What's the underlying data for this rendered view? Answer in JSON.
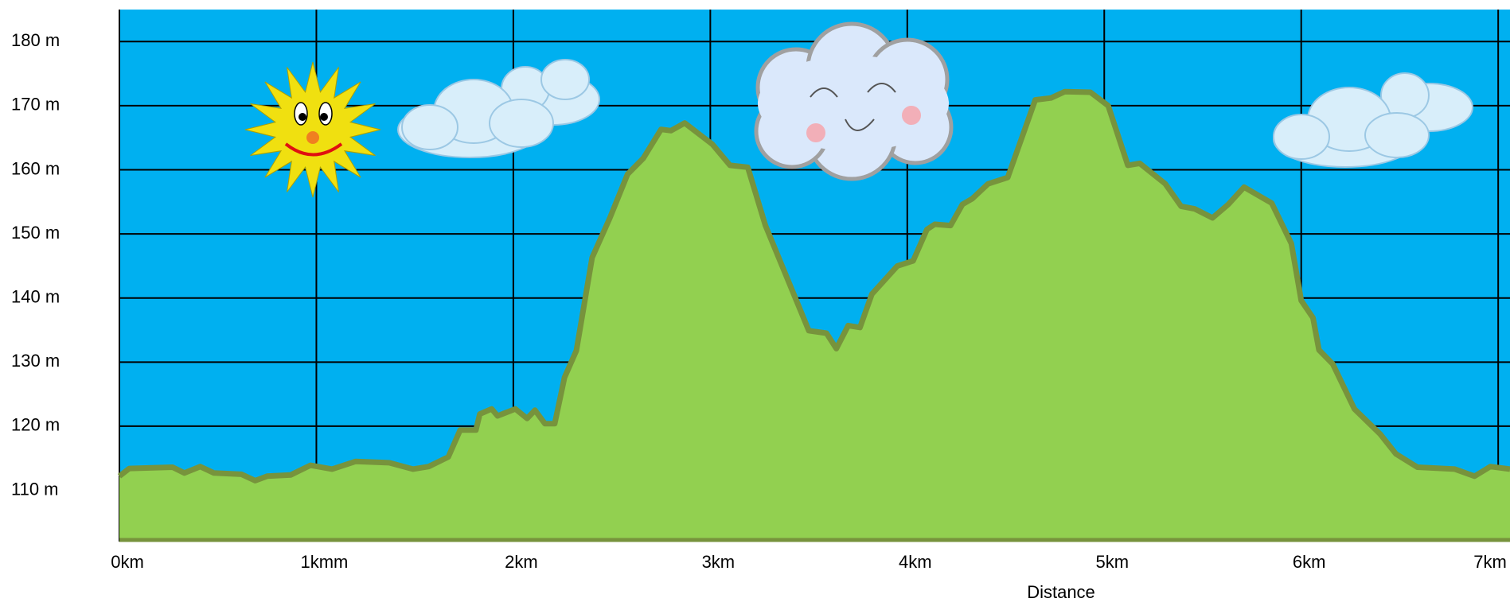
{
  "chart_data": {
    "type": "area",
    "xlabel": "Distance",
    "x": [
      0,
      0.05,
      0.27,
      0.33,
      0.41,
      0.48,
      0.62,
      0.69,
      0.75,
      0.87,
      0.97,
      1.08,
      1.2,
      1.37,
      1.49,
      1.57,
      1.67,
      1.73,
      1.81,
      1.83,
      1.89,
      1.92,
      2.01,
      2.07,
      2.11,
      2.16,
      2.21,
      2.26,
      2.32,
      2.4,
      2.49,
      2.58,
      2.66,
      2.75,
      2.8,
      2.87,
      3.01,
      3.1,
      3.19,
      3.28,
      3.5,
      3.59,
      3.64,
      3.7,
      3.76,
      3.82,
      3.95,
      4.03,
      4.1,
      4.14,
      4.22,
      4.28,
      4.33,
      4.41,
      4.51,
      4.65,
      4.73,
      4.8,
      4.93,
      5.02,
      5.12,
      5.18,
      5.31,
      5.39,
      5.46,
      5.55,
      5.63,
      5.71,
      5.85,
      5.95,
      6.0,
      6.06,
      6.09,
      6.16,
      6.27,
      6.4,
      6.48,
      6.59,
      6.78,
      6.88,
      6.96,
      7.06
    ],
    "values": [
      112.2,
      113.4,
      113.6,
      112.7,
      113.7,
      112.7,
      112.5,
      111.5,
      112.2,
      112.4,
      113.9,
      113.3,
      114.5,
      114.3,
      113.3,
      113.7,
      115.2,
      119.4,
      119.4,
      121.9,
      122.7,
      121.6,
      122.7,
      121.2,
      122.5,
      120.4,
      120.4,
      127.6,
      131.8,
      146.3,
      152.5,
      159.3,
      161.8,
      166.3,
      166.1,
      167.3,
      164,
      160.7,
      160.4,
      151.3,
      134.9,
      134.5,
      132.1,
      135.7,
      135.4,
      140.6,
      145,
      145.8,
      150.7,
      151.5,
      151.3,
      154.6,
      155.5,
      157.8,
      158.8,
      170.9,
      171.2,
      172.2,
      172.1,
      170,
      160.7,
      161,
      157.8,
      154.3,
      153.9,
      152.5,
      154.6,
      157.3,
      154.8,
      148.5,
      139.6,
      136.9,
      131.9,
      129.7,
      122.7,
      118.8,
      115.7,
      113.6,
      113.3,
      112.2,
      113.7,
      113.3
    ],
    "xlim": [
      0,
      7.06
    ],
    "ylim": [
      102,
      185
    ],
    "xticks": [
      {
        "value": 0,
        "label": "0km"
      },
      {
        "value": 1,
        "label": "1kmm"
      },
      {
        "value": 2,
        "label": "2km"
      },
      {
        "value": 3,
        "label": "3km"
      },
      {
        "value": 4,
        "label": "4km"
      },
      {
        "value": 5,
        "label": "5km"
      },
      {
        "value": 6,
        "label": "6km"
      },
      {
        "value": 7,
        "label": "7km"
      }
    ],
    "yticks": [
      {
        "value": 110,
        "label": "110 m"
      },
      {
        "value": 120,
        "label": "120 m"
      },
      {
        "value": 130,
        "label": "130 m"
      },
      {
        "value": 140,
        "label": "140 m"
      },
      {
        "value": 150,
        "label": "150 m"
      },
      {
        "value": 160,
        "label": "160 m"
      },
      {
        "value": 170,
        "label": "170 m"
      },
      {
        "value": 180,
        "label": "180 m"
      }
    ],
    "color": "#92d050",
    "line_color": "#77933c",
    "background": "#00b0f0",
    "grid": true
  }
}
